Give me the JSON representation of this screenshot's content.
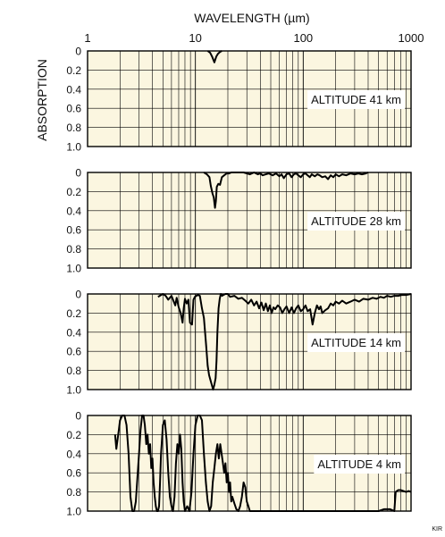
{
  "chart_data": [
    {
      "type": "line",
      "x_axis_label": "WAVELENGTH (µm)",
      "y_axis_label": "ABSORPTION",
      "x_scale": "log",
      "xlim": [
        1,
        1000
      ],
      "x_tick_labels": [
        "1",
        "10",
        "100",
        "1000"
      ],
      "y_tick_labels": [
        "0",
        "0.2",
        "0.4",
        "0.6",
        "0.8",
        "1.0"
      ],
      "ylim": [
        0,
        1
      ],
      "y_inverted": true,
      "grid": true,
      "panels": [
        {
          "label": "ALTITUDE 41 km",
          "x": [
            13,
            13.7,
            14.3,
            15.0,
            15.6,
            16.2,
            16.9,
            17.6
          ],
          "y": [
            0,
            0.02,
            0.06,
            0.12,
            0.06,
            0.03,
            0.01,
            0
          ]
        },
        {
          "label": "ALTITUDE 28 km",
          "x": [
            12.0,
            12.8,
            13.5,
            13.9,
            14.4,
            14.8,
            15.2,
            15.5,
            15.8,
            16.3,
            16.9,
            17.6,
            18.5,
            19.5,
            20.5,
            21.5,
            28,
            32,
            35,
            38,
            40,
            42,
            45,
            48,
            52,
            56,
            60,
            63,
            66,
            70,
            74,
            78,
            82,
            86,
            90,
            95,
            100,
            105,
            110,
            115,
            120,
            128,
            135,
            142,
            150,
            160,
            170,
            180,
            190,
            200,
            215,
            230,
            250,
            275,
            300,
            325,
            350,
            380,
            400
          ],
          "y": [
            0,
            0.02,
            0.05,
            0.14,
            0.22,
            0.26,
            0.37,
            0.3,
            0.15,
            0.12,
            0.13,
            0.05,
            0.03,
            0.01,
            0.01,
            0,
            0,
            0.02,
            0,
            0.02,
            0.01,
            0.03,
            0.02,
            0.01,
            0.03,
            0.01,
            0.04,
            0.02,
            0.06,
            0.02,
            0.01,
            0.05,
            0.02,
            0.01,
            0.03,
            0.05,
            0.02,
            0.01,
            0.03,
            0.05,
            0.02,
            0.04,
            0.02,
            0.03,
            0.05,
            0.04,
            0.07,
            0.03,
            0.05,
            0.02,
            0.04,
            0.02,
            0.03,
            0.01,
            0.02,
            0.01,
            0.02,
            0.01,
            0
          ]
        },
        {
          "label": "ALTITUDE 14 km",
          "x": [
            4.5,
            5.0,
            5.3,
            5.6,
            6.0,
            6.3,
            6.5,
            6.7,
            7.0,
            7.3,
            7.6,
            7.8,
            8.0,
            8.3,
            8.6,
            8.9,
            9.3,
            9.6,
            9.9,
            10.2,
            10.6,
            11.0,
            11.5,
            12.0,
            12.6,
            13.0,
            13.4,
            13.8,
            14.2,
            14.6,
            15.0,
            15.4,
            15.7,
            16.0,
            16.4,
            16.8,
            17.2,
            17.7,
            18.2,
            19.0,
            20.0,
            21,
            23,
            25,
            27,
            29,
            31,
            33,
            35,
            37,
            39,
            41,
            43,
            45,
            47,
            49,
            51,
            53,
            55,
            58,
            61,
            64,
            67,
            70,
            74,
            78,
            82,
            86,
            90,
            95,
            100,
            105,
            110,
            116,
            122,
            128,
            134,
            140,
            145,
            150,
            160,
            170,
            180,
            190,
            200,
            215,
            230,
            250,
            275,
            300,
            330,
            360,
            400,
            440,
            480,
            520,
            560,
            600,
            650,
            700,
            760,
            820,
            900,
            1000
          ],
          "y": [
            0.03,
            0,
            0.02,
            0.06,
            0.02,
            0.08,
            0.12,
            0.04,
            0.14,
            0.2,
            0.3,
            0.15,
            0.05,
            0.1,
            0.06,
            0.3,
            0.32,
            0.06,
            0.03,
            0.02,
            0.01,
            0.02,
            0.15,
            0.25,
            0.55,
            0.75,
            0.85,
            0.9,
            0.95,
            1.0,
            0.95,
            0.88,
            0.7,
            0.4,
            0.15,
            0.05,
            0,
            0.02,
            0.01,
            0,
            0,
            0.03,
            0.02,
            0.05,
            0.04,
            0.07,
            0.1,
            0.06,
            0.12,
            0.08,
            0.15,
            0.09,
            0.17,
            0.1,
            0.18,
            0.12,
            0.2,
            0.14,
            0.16,
            0.12,
            0.14,
            0.2,
            0.16,
            0.13,
            0.2,
            0.14,
            0.2,
            0.15,
            0.12,
            0.18,
            0.16,
            0.12,
            0.18,
            0.16,
            0.32,
            0.2,
            0.12,
            0.16,
            0.13,
            0.2,
            0.17,
            0.15,
            0.1,
            0.12,
            0.08,
            0.1,
            0.07,
            0.1,
            0.08,
            0.06,
            0.08,
            0.05,
            0.06,
            0.04,
            0.05,
            0.03,
            0.04,
            0.02,
            0.03,
            0.02,
            0.02,
            0.01,
            0.01,
            0
          ]
        },
        {
          "label": "ALTITUDE 4 km",
          "x": [
            1.8,
            1.85,
            1.9,
            1.95,
            2.0,
            2.1,
            2.2,
            2.3,
            2.4,
            2.5,
            2.6,
            2.7,
            2.8,
            2.9,
            3.0,
            3.1,
            3.2,
            3.3,
            3.4,
            3.5,
            3.6,
            3.7,
            3.8,
            3.9,
            4.0,
            4.1,
            4.2,
            4.3,
            4.4,
            4.5,
            4.6,
            4.7,
            4.8,
            4.9,
            5.0,
            5.2,
            5.4,
            5.6,
            5.8,
            6.0,
            6.2,
            6.4,
            6.6,
            6.8,
            7.0,
            7.2,
            7.4,
            7.6,
            7.8,
            8.0,
            8.4,
            8.8,
            9.2,
            9.6,
            10.0,
            10.5,
            11.0,
            11.5,
            12.0,
            12.5,
            13.0,
            13.5,
            14.0,
            14.5,
            15.0,
            15.5,
            16.0,
            16.5,
            17.0,
            17.5,
            18.0,
            18.5,
            19.0,
            19.5,
            20.0,
            20.5,
            21.0,
            21.5,
            22.0,
            23.0,
            24.0,
            25.0,
            26.0,
            27.0,
            28.0,
            29.0,
            30.0,
            31.0,
            32.0,
            34.0,
            36.0,
            500,
            560,
            640,
            700,
            720,
            760,
            800,
            900,
            950,
            1000
          ],
          "y": [
            0.2,
            0.35,
            0.25,
            0.15,
            0.05,
            0,
            0,
            0.1,
            0.4,
            0.85,
            1.0,
            1.0,
            0.9,
            0.65,
            0.4,
            0.15,
            0,
            0,
            0.1,
            0.3,
            0.2,
            0.4,
            0.3,
            0.55,
            0.45,
            0.7,
            0.85,
            0.95,
            1.0,
            1.0,
            0.95,
            0.7,
            0.4,
            0.25,
            0.1,
            0.05,
            0.25,
            0.6,
            0.85,
            0.95,
            1.0,
            0.85,
            0.5,
            0.3,
            0.4,
            0.2,
            0.35,
            0.7,
            0.9,
            1.0,
            0.95,
            1.0,
            0.8,
            0.4,
            0.1,
            0,
            0,
            0.05,
            0.4,
            0.7,
            0.9,
            1.0,
            0.95,
            0.7,
            0.55,
            0.4,
            0.3,
            0.45,
            0.3,
            0.4,
            0.5,
            0.6,
            0.5,
            0.7,
            0.6,
            0.8,
            0.7,
            0.9,
            0.85,
            0.92,
            0.98,
            1.0,
            0.95,
            0.85,
            0.7,
            0.75,
            0.9,
            0.95,
            1.0,
            1.0,
            1.0,
            1.0,
            0.98,
            0.98,
            1.0,
            0.8,
            0.78,
            0.78,
            0.8,
            0.79,
            0.8
          ]
        }
      ]
    }
  ],
  "credit": "KIR",
  "colors": {
    "plot_bg": "#fbf6e0",
    "line": "#000000",
    "grid": "#000000",
    "label_box": "#ffffff"
  }
}
